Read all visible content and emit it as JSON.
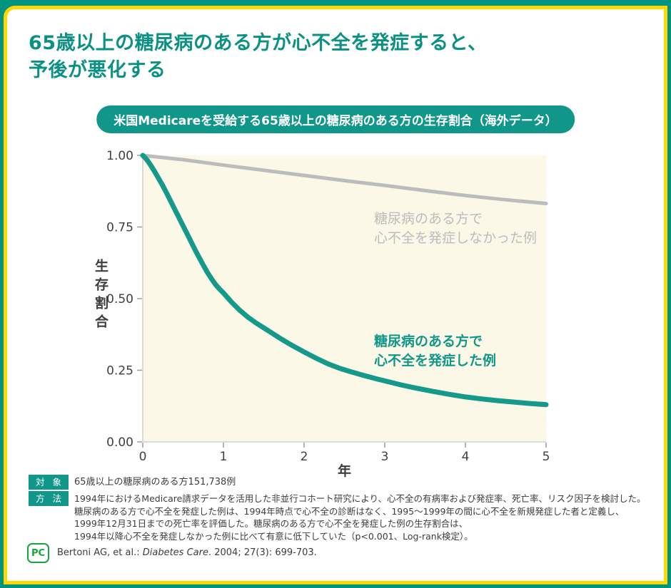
{
  "frame": {
    "outer_color": "#00947F",
    "border_color": "#FFD800"
  },
  "title": {
    "line1": "65歳以上の糖尿病のある方が心不全を発症すると、",
    "line2": "予後が悪化する",
    "color": "#0B9183"
  },
  "chart_data": {
    "type": "line",
    "title": "米国Medicareを受給する65歳以上の糖尿病のある方の生存割合（海外データ）",
    "xlabel": "年",
    "ylabel": "生存割合",
    "xlim": [
      0,
      5
    ],
    "ylim": [
      0.0,
      1.0
    ],
    "x_ticks": [
      0,
      1,
      2,
      3,
      4,
      5
    ],
    "y_ticks": [
      1.0,
      0.75,
      0.5,
      0.25,
      0.0
    ],
    "grid": false,
    "legend_position": "inside-annotations",
    "plot_bg": "#FBF8E8",
    "axis_color": "#CFCFCF",
    "tick_color": "#9A9A9A",
    "tick_label_color": "#404040",
    "series": [
      {
        "name": "糖尿病のある方で心不全を発症しなかった例",
        "label_lines": [
          "糖尿病のある方で",
          "心不全を発症しなかった例"
        ],
        "color": "#BCBCBC",
        "stroke_width": 5,
        "points": [
          [
            0,
            1.0
          ],
          [
            0.5,
            0.985
          ],
          [
            1,
            0.966
          ],
          [
            1.5,
            0.948
          ],
          [
            2,
            0.93
          ],
          [
            2.5,
            0.912
          ],
          [
            3,
            0.895
          ],
          [
            3.5,
            0.877
          ],
          [
            4,
            0.86
          ],
          [
            4.5,
            0.845
          ],
          [
            5,
            0.832
          ]
        ]
      },
      {
        "name": "糖尿病のある方で心不全を発症した例",
        "label_lines": [
          "糖尿病のある方で",
          "心不全を発症した例"
        ],
        "color": "#14998B",
        "stroke_width": 7,
        "points": [
          [
            0,
            1.0
          ],
          [
            0.05,
            0.985
          ],
          [
            0.1,
            0.965
          ],
          [
            0.15,
            0.942
          ],
          [
            0.2,
            0.918
          ],
          [
            0.25,
            0.893
          ],
          [
            0.3,
            0.866
          ],
          [
            0.35,
            0.838
          ],
          [
            0.4,
            0.81
          ],
          [
            0.45,
            0.782
          ],
          [
            0.5,
            0.754
          ],
          [
            0.55,
            0.726
          ],
          [
            0.6,
            0.698
          ],
          [
            0.65,
            0.67
          ],
          [
            0.7,
            0.643
          ],
          [
            0.75,
            0.617
          ],
          [
            0.8,
            0.592
          ],
          [
            0.85,
            0.57
          ],
          [
            0.9,
            0.55
          ],
          [
            0.95,
            0.534
          ],
          [
            1.0,
            0.52
          ],
          [
            1.1,
            0.488
          ],
          [
            1.2,
            0.46
          ],
          [
            1.3,
            0.436
          ],
          [
            1.4,
            0.416
          ],
          [
            1.5,
            0.398
          ],
          [
            1.6,
            0.38
          ],
          [
            1.7,
            0.362
          ],
          [
            1.8,
            0.345
          ],
          [
            1.9,
            0.329
          ],
          [
            2.0,
            0.314
          ],
          [
            2.15,
            0.292
          ],
          [
            2.3,
            0.272
          ],
          [
            2.45,
            0.256
          ],
          [
            2.6,
            0.243
          ],
          [
            2.75,
            0.231
          ],
          [
            2.9,
            0.22
          ],
          [
            3.0,
            0.213
          ],
          [
            3.2,
            0.199
          ],
          [
            3.4,
            0.187
          ],
          [
            3.6,
            0.176
          ],
          [
            3.8,
            0.166
          ],
          [
            4.0,
            0.157
          ],
          [
            4.2,
            0.15
          ],
          [
            4.4,
            0.144
          ],
          [
            4.6,
            0.139
          ],
          [
            4.8,
            0.134
          ],
          [
            5.0,
            0.13
          ]
        ]
      }
    ]
  },
  "subject": {
    "badge_char1": "対",
    "badge_char2": "象",
    "text": "65歳以上の糖尿病のある方151,738例"
  },
  "method": {
    "badge_char1": "方",
    "badge_char2": "法",
    "lines": [
      "1994年におけるMedicare請求データを活用した非並行コホート研究により、心不全の有病率および発症率、死亡率、リスク因子を検討した。",
      "糖尿病のある方で心不全を発症した例は、1994年時点で心不全の診断はなく、1995～1999年の間に心不全を新規発症した者と定義し、",
      "1999年12月31日までの死亡率を評価した。糖尿病のある方で心不全を発症した例の生存割合は、",
      "1994年以降心不全を発症しなかった例に比べて有意に低下していた（p<0.001、Log-rank検定）。"
    ]
  },
  "citation": {
    "prefix": "Bertoni AG, et al.: ",
    "journal": "Diabetes Care",
    "suffix": ". 2004; 27(3): 699-703."
  },
  "logo": {
    "text": "PC",
    "color": "#17A63B"
  }
}
